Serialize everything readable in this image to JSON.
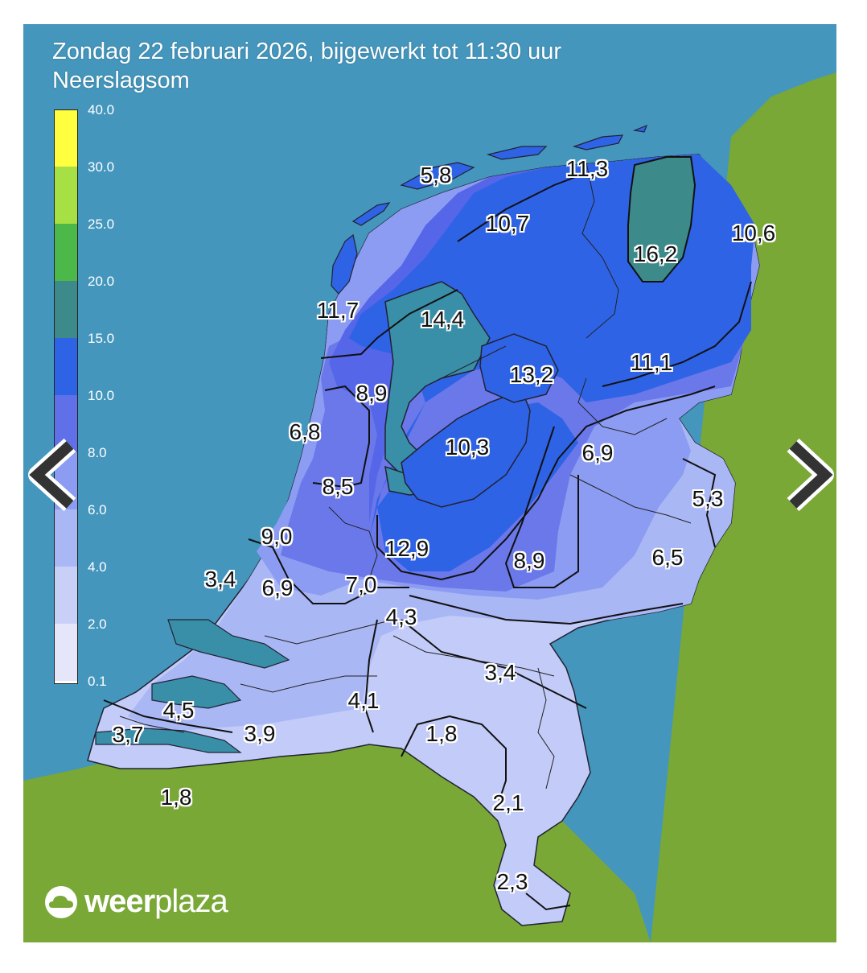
{
  "header": {
    "title": "Zondag 22 februari 2026, bijgewerkt tot 11:30 uur",
    "subtitle": "Neerslagsom"
  },
  "legend": {
    "ticks": [
      "40.0",
      "30.0",
      "25.0",
      "20.0",
      "15.0",
      "10.0",
      "8.0",
      "6.0",
      "4.0",
      "2.0",
      "0.1"
    ],
    "colors": [
      "#ffff3f",
      "#a7e044",
      "#4db84a",
      "#3c8b8a",
      "#2f63e6",
      "#6070e8",
      "#8c9cf2",
      "#aab7f5",
      "#c9d0f8",
      "#e6e6fb"
    ]
  },
  "colors": {
    "sea": "#4496bd",
    "land_abroad": "#79a837",
    "water_inland": "#3a8fa8"
  },
  "values": [
    "5,8",
    "11,3",
    "10,7",
    "16,2",
    "10,6",
    "11,7",
    "14,4",
    "13,2",
    "11,1",
    "8,9",
    "6,8",
    "10,3",
    "6,9",
    "5,3",
    "8,5",
    "9,0",
    "12,9",
    "8,9",
    "6,5",
    "3,4",
    "6,9",
    "7,0",
    "4,3",
    "3,4",
    "4,1",
    "4,5",
    "3,7",
    "3,9",
    "1,8",
    "1,8",
    "2,1",
    "2,3"
  ],
  "logo": {
    "brand_bold": "weer",
    "brand_light": "plaza",
    "icon": "cloud-icon"
  },
  "navigation": {
    "prev_icon": "chevron-left-icon",
    "next_icon": "chevron-right-icon"
  }
}
